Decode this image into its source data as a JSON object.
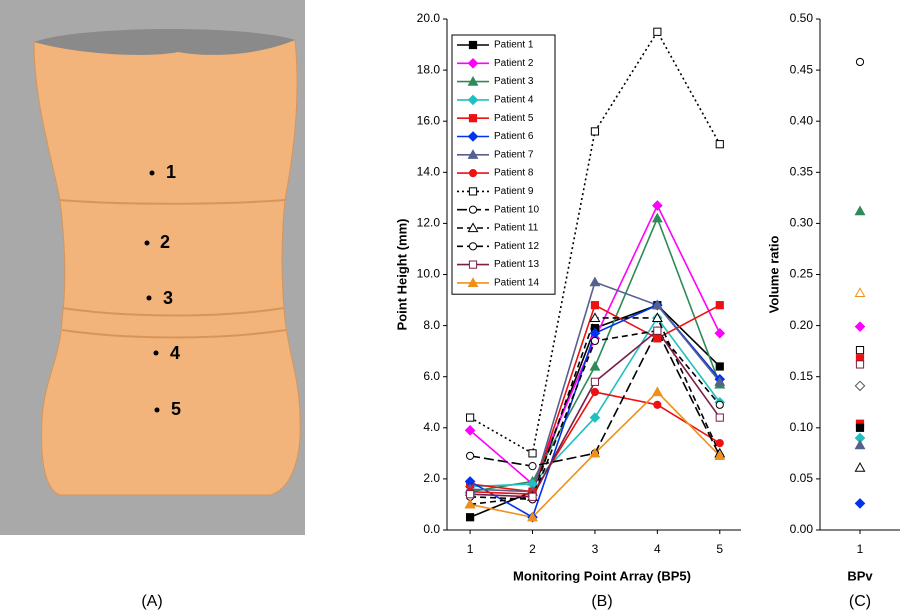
{
  "image": {
    "points": [
      "1",
      "2",
      "3",
      "4",
      "5"
    ],
    "caption": "(A)"
  },
  "chart_data": [
    {
      "type": "line",
      "caption": "(B)",
      "xlabel": "Monitoring Point Array (BP5)",
      "ylabel": "Point Height (mm)",
      "x": [
        1,
        2,
        3,
        4,
        5
      ],
      "xlim": [
        0.63,
        5.34
      ],
      "xticks": [
        1,
        2,
        3,
        4,
        5
      ],
      "ylim": [
        0,
        20
      ],
      "yticks": [
        {
          "value": 0,
          "label": "0.0"
        },
        {
          "value": 2,
          "label": "2.0"
        },
        {
          "value": 4,
          "label": "4.0"
        },
        {
          "value": 6,
          "label": "6.0"
        },
        {
          "value": 8,
          "label": "8.0"
        },
        {
          "value": 10,
          "label": "10.0"
        },
        {
          "value": 12,
          "label": "12.0"
        },
        {
          "value": 14,
          "label": "14.0"
        },
        {
          "value": 16,
          "label": "16.0"
        },
        {
          "value": 18,
          "label": "18.0"
        },
        {
          "value": 20,
          "label": "20.0"
        }
      ],
      "series": [
        {
          "name": "Patient 1",
          "color": "#000000",
          "marker": "square",
          "dash": "solid",
          "values": [
            0.5,
            1.5,
            7.9,
            8.8,
            6.4
          ]
        },
        {
          "name": "Patient 2",
          "color": "#ff00ff",
          "marker": "diamond",
          "dash": "solid",
          "values": [
            3.9,
            1.8,
            7.5,
            12.7,
            7.7
          ]
        },
        {
          "name": "Patient 3",
          "color": "#2e8b57",
          "marker": "triangle",
          "dash": "solid",
          "values": [
            1.5,
            1.9,
            6.4,
            12.2,
            5.7
          ]
        },
        {
          "name": "Patient 4",
          "color": "#20c0c0",
          "marker": "diamond",
          "dash": "solid",
          "values": [
            1.7,
            1.8,
            4.4,
            8.3,
            5.0
          ]
        },
        {
          "name": "Patient 5",
          "color": "#ee1111",
          "marker": "square",
          "dash": "solid",
          "values": [
            1.8,
            1.5,
            8.8,
            7.5,
            8.8
          ]
        },
        {
          "name": "Patient 6",
          "color": "#0033ee",
          "marker": "diamond",
          "dash": "solid",
          "values": [
            1.9,
            0.5,
            7.7,
            8.8,
            5.9
          ]
        },
        {
          "name": "Patient 7",
          "color": "#55608f",
          "marker": "triangle",
          "dash": "solid",
          "values": [
            1.6,
            1.5,
            9.7,
            8.8,
            5.8
          ]
        },
        {
          "name": "Patient 8",
          "color": "#ee1111",
          "marker": "circle",
          "dash": "solid",
          "values": [
            1.5,
            1.4,
            5.4,
            4.9,
            3.4
          ]
        },
        {
          "name": "Patient 9",
          "color": "#000000",
          "marker": "open-square",
          "dash": "dotted",
          "values": [
            4.4,
            3.0,
            15.6,
            19.5,
            15.1
          ]
        },
        {
          "name": "Patient 10",
          "color": "#000000",
          "marker": "open-circle",
          "dash": "longdash",
          "values": [
            2.9,
            2.5,
            3.0,
            7.8,
            2.9
          ]
        },
        {
          "name": "Patient 11",
          "color": "#000000",
          "marker": "open-triangle",
          "dash": "dashed",
          "values": [
            1.0,
            1.3,
            8.3,
            8.3,
            3.0
          ]
        },
        {
          "name": "Patient 12",
          "color": "#000000",
          "marker": "open-circle",
          "dash": "dashed",
          "values": [
            1.3,
            1.2,
            7.4,
            7.8,
            4.9
          ]
        },
        {
          "name": "Patient 13",
          "color": "#7a1f4a",
          "marker": "open-square",
          "dash": "solid",
          "values": [
            1.4,
            1.3,
            5.8,
            7.8,
            4.4
          ]
        },
        {
          "name": "Patient 14",
          "color": "#f0901a",
          "marker": "triangle",
          "dash": "solid",
          "values": [
            1.0,
            0.5,
            3.0,
            5.4,
            2.9
          ]
        }
      ]
    },
    {
      "type": "scatter",
      "caption": "(C)",
      "xlabel": "BPv",
      "ylabel": "Volume ratio",
      "categories": [
        "1"
      ],
      "ylim": [
        0,
        0.5
      ],
      "yticks": [
        {
          "value": 0,
          "label": "0.00"
        },
        {
          "value": 0.05,
          "label": "0.05"
        },
        {
          "value": 0.1,
          "label": "0.10"
        },
        {
          "value": 0.15,
          "label": "0.15"
        },
        {
          "value": 0.2,
          "label": "0.20"
        },
        {
          "value": 0.25,
          "label": "0.25"
        },
        {
          "value": 0.3,
          "label": "0.30"
        },
        {
          "value": 0.35,
          "label": "0.35"
        },
        {
          "value": 0.4,
          "label": "0.40"
        },
        {
          "value": 0.45,
          "label": "0.45"
        },
        {
          "value": 0.5,
          "label": "0.50"
        }
      ],
      "series": [
        {
          "color": "#000000",
          "marker": "open-circle",
          "values": [
            0.458
          ]
        },
        {
          "color": "#2e8b57",
          "marker": "triangle",
          "values": [
            0.312
          ]
        },
        {
          "color": "#f0901a",
          "marker": "open-triangle",
          "values": [
            0.232
          ]
        },
        {
          "color": "#ff00ff",
          "marker": "diamond",
          "values": [
            0.199
          ]
        },
        {
          "color": "#000000",
          "marker": "open-square",
          "values": [
            0.176
          ]
        },
        {
          "color": "#ee1111",
          "marker": "square",
          "values": [
            0.168
          ]
        },
        {
          "color": "#7a1f4a",
          "marker": "open-square",
          "values": [
            0.162
          ]
        },
        {
          "color": "#555555",
          "marker": "open-diamond",
          "values": [
            0.141
          ]
        },
        {
          "color": "#ee1111",
          "marker": "square",
          "values": [
            0.104
          ]
        },
        {
          "color": "#000000",
          "marker": "square",
          "values": [
            0.1
          ]
        },
        {
          "color": "#20c0c0",
          "marker": "diamond",
          "values": [
            0.09
          ]
        },
        {
          "color": "#55608f",
          "marker": "triangle",
          "values": [
            0.083
          ]
        },
        {
          "color": "#000000",
          "marker": "open-triangle",
          "values": [
            0.061
          ]
        },
        {
          "color": "#0033ee",
          "marker": "diamond",
          "values": [
            0.026
          ]
        }
      ]
    }
  ]
}
